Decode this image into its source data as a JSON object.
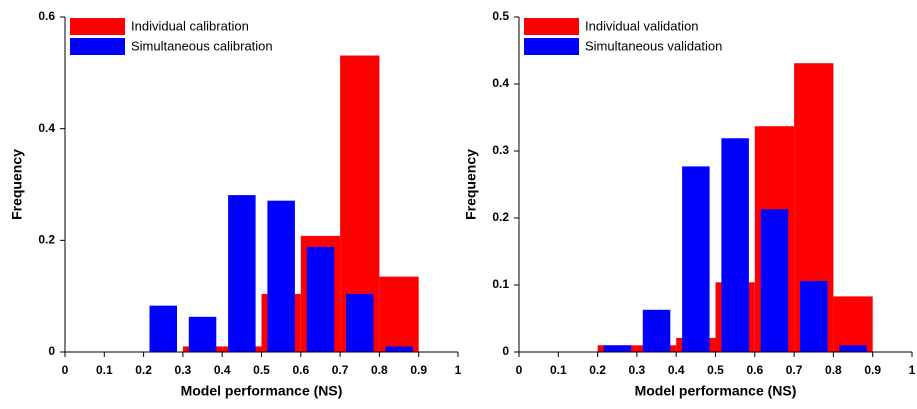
{
  "chart_data": [
    {
      "type": "histogram",
      "xlabel": "Model performance (NS)",
      "ylabel": "Frequency",
      "bins": [
        0.2,
        0.3,
        0.4,
        0.5,
        0.6,
        0.7,
        0.8,
        0.9
      ],
      "series": [
        {
          "name": "Individual calibration",
          "color": "#ff0000",
          "values": [
            0,
            0.01,
            0.01,
            0.104,
            0.208,
            0.531,
            0.135
          ]
        },
        {
          "name": "Simultaneous calibration",
          "color": "#0000ff",
          "values": [
            0.083,
            0.063,
            0.281,
            0.271,
            0.188,
            0.104,
            0.01
          ]
        }
      ],
      "xlim": [
        0,
        1
      ],
      "xticks": [
        0,
        0.1,
        0.2,
        0.3,
        0.4,
        0.5,
        0.6,
        0.7,
        0.8,
        0.9,
        1
      ],
      "ylim": [
        0,
        0.6
      ],
      "yticks": [
        0,
        0.2,
        0.4,
        0.6
      ],
      "legend": "upper left",
      "grid": false
    },
    {
      "type": "histogram",
      "xlabel": "Model performance (NS)",
      "ylabel": "Frequency",
      "bins": [
        0.2,
        0.3,
        0.4,
        0.5,
        0.6,
        0.7,
        0.8,
        0.9
      ],
      "series": [
        {
          "name": "Individual validation",
          "color": "#ff0000",
          "values": [
            0.01,
            0.01,
            0.021,
            0.104,
            0.337,
            0.431,
            0.083
          ]
        },
        {
          "name": "Simultaneous validation",
          "color": "#0000ff",
          "values": [
            0.01,
            0.063,
            0.277,
            0.319,
            0.213,
            0.106,
            0.01
          ]
        }
      ],
      "xlim": [
        0,
        1
      ],
      "xticks": [
        0,
        0.1,
        0.2,
        0.3,
        0.4,
        0.5,
        0.6,
        0.7,
        0.8,
        0.9,
        1
      ],
      "ylim": [
        0,
        0.5
      ],
      "yticks": [
        0,
        0.1,
        0.2,
        0.3,
        0.4,
        0.5
      ],
      "legend": "upper left",
      "grid": false
    }
  ]
}
